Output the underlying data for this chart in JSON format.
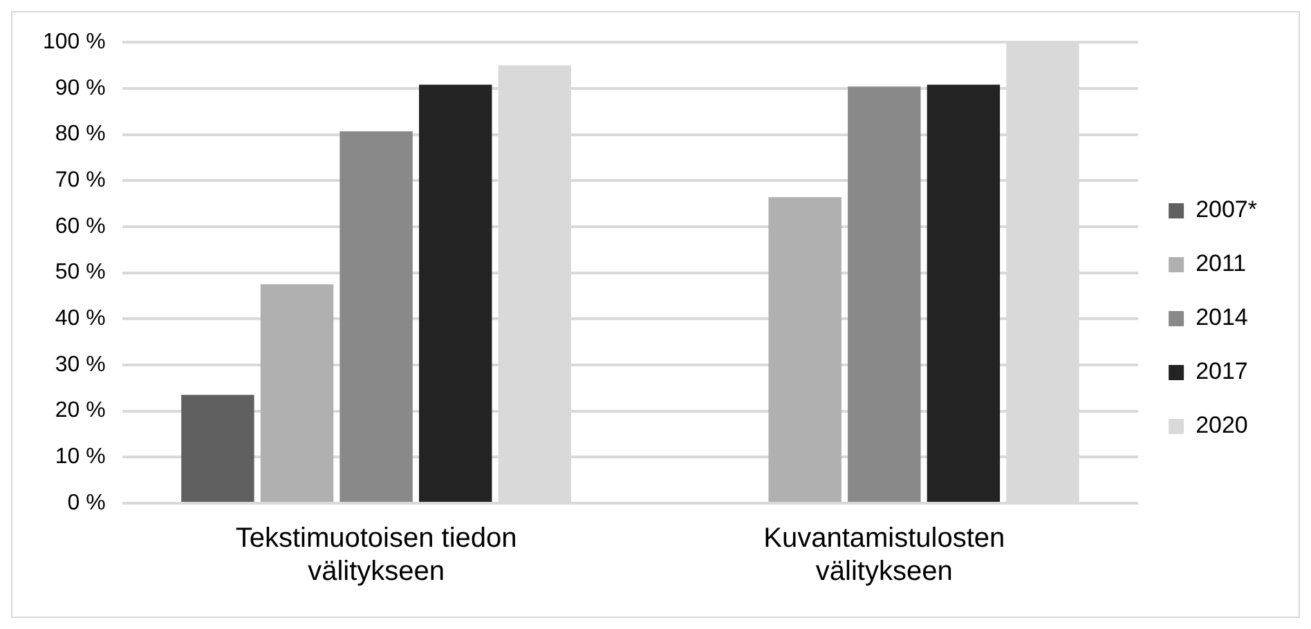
{
  "chart_data": {
    "type": "bar",
    "categories": [
      "Tekstimuotoisen tiedon välitykseen",
      "Kuvantamistulosten välitykseen"
    ],
    "series": [
      {
        "name": "2007*",
        "color": "#606060",
        "values": [
          23.5,
          null
        ]
      },
      {
        "name": "2011",
        "color": "#b0b0b0",
        "values": [
          47.5,
          66.4
        ]
      },
      {
        "name": "2014",
        "color": "#898989",
        "values": [
          80.7,
          90.4
        ]
      },
      {
        "name": "2017",
        "color": "#232323",
        "values": [
          90.8,
          90.8
        ]
      },
      {
        "name": "2020",
        "color": "#d9d9d9",
        "values": [
          95,
          100
        ]
      }
    ],
    "ylim": [
      0,
      100
    ],
    "yticks": [
      {
        "value": 0,
        "label": "0 %"
      },
      {
        "value": 10,
        "label": "10 %"
      },
      {
        "value": 20,
        "label": "20 %"
      },
      {
        "value": 30,
        "label": "30 %"
      },
      {
        "value": 40,
        "label": "40 %"
      },
      {
        "value": 50,
        "label": "50 %"
      },
      {
        "value": 60,
        "label": "60 %"
      },
      {
        "value": 70,
        "label": "70 %"
      },
      {
        "value": 80,
        "label": "80 %"
      },
      {
        "value": 90,
        "label": "90 %"
      },
      {
        "value": 100,
        "label": "100 %"
      }
    ],
    "grid": "y",
    "legend": "right"
  }
}
